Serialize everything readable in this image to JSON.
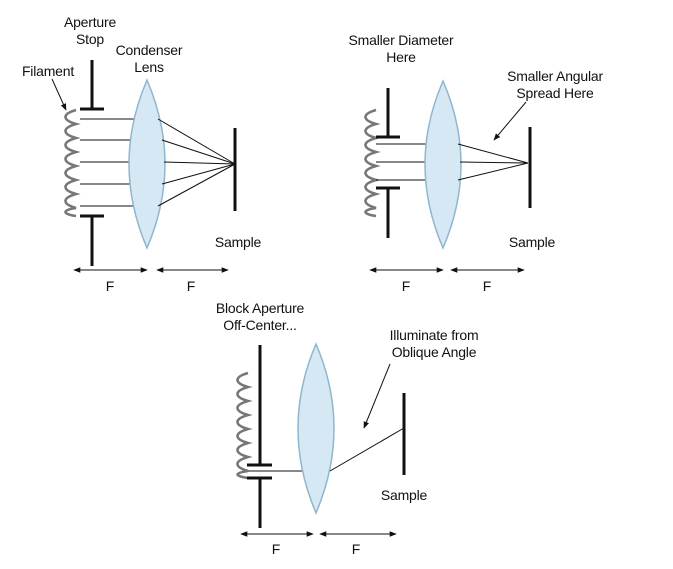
{
  "colors": {
    "ink": "#111111",
    "lens_fill": "#d6e8f4",
    "lens_stroke": "#8fb6cf",
    "filament": "#777777"
  },
  "panels": {
    "full": {
      "labels": {
        "aperture_stop": [
          "Aperture",
          "Stop"
        ],
        "condenser_lens": [
          "Condenser",
          "Lens"
        ],
        "filament": "Filament",
        "sample": "Sample",
        "focal_left": "F",
        "focal_right": "F"
      }
    },
    "reduced": {
      "labels": {
        "diameter_note": [
          "Smaller Diameter",
          "Here"
        ],
        "angular_note": [
          "Smaller Angular",
          "Spread Here"
        ],
        "sample": "Sample",
        "focal_left": "F",
        "focal_right": "F"
      }
    },
    "oblique": {
      "labels": {
        "block_note": [
          "Block Aperture",
          "Off-Center..."
        ],
        "oblique_note": [
          "Illuminate from",
          "Oblique Angle"
        ],
        "sample": "Sample",
        "focal_left": "F",
        "focal_right": "F"
      }
    }
  }
}
